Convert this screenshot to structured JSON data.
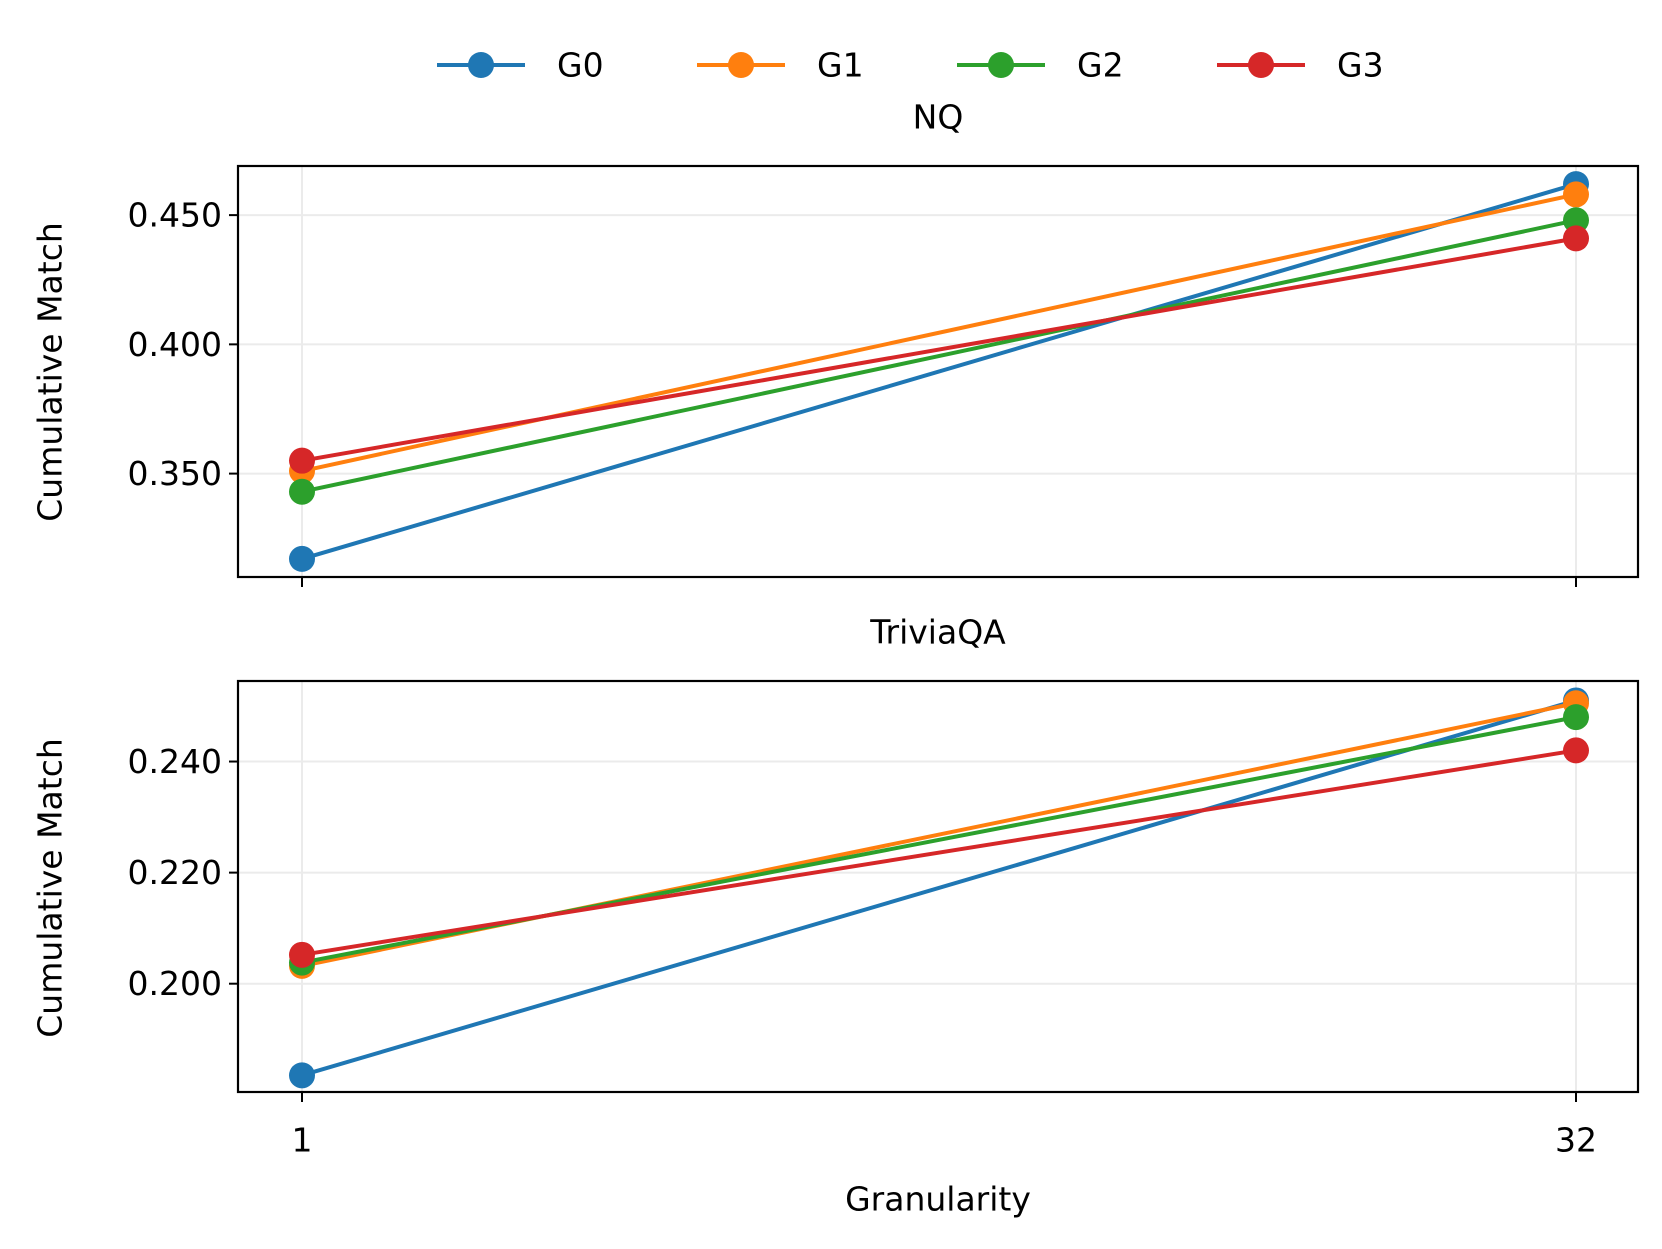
{
  "legend": {
    "placement": "top-center",
    "entries": [
      {
        "label": "G0",
        "color": "#1f77b4"
      },
      {
        "label": "G1",
        "color": "#ff7f0e"
      },
      {
        "label": "G2",
        "color": "#2ca02c"
      },
      {
        "label": "G3",
        "color": "#d62728"
      }
    ]
  },
  "chart_data": [
    {
      "type": "line",
      "title": "NQ",
      "xlabel": "",
      "ylabel": "Cumulative Match",
      "x": [
        1,
        32
      ],
      "x_tick_labels": [
        "1",
        "32"
      ],
      "ylim": [
        0.31,
        0.469
      ],
      "y_ticks": [
        0.35,
        0.4,
        0.45
      ],
      "y_tick_labels": [
        "0.350",
        "0.400",
        "0.450"
      ],
      "grid": true,
      "series": [
        {
          "name": "G0",
          "values": [
            0.317,
            0.462
          ]
        },
        {
          "name": "G1",
          "values": [
            0.351,
            0.458
          ]
        },
        {
          "name": "G2",
          "values": [
            0.343,
            0.448
          ]
        },
        {
          "name": "G3",
          "values": [
            0.355,
            0.441
          ]
        }
      ]
    },
    {
      "type": "line",
      "title": "TriviaQA",
      "xlabel": "Granularity",
      "ylabel": "Cumulative Match",
      "x": [
        1,
        32
      ],
      "x_tick_labels": [
        "1",
        "32"
      ],
      "ylim": [
        0.1805,
        0.2545
      ],
      "y_ticks": [
        0.2,
        0.22,
        0.24
      ],
      "y_tick_labels": [
        "0.200",
        "0.220",
        "0.240"
      ],
      "grid": true,
      "series": [
        {
          "name": "G0",
          "values": [
            0.1835,
            0.251
          ]
        },
        {
          "name": "G1",
          "values": [
            0.2032,
            0.2505
          ]
        },
        {
          "name": "G2",
          "values": [
            0.2038,
            0.248
          ]
        },
        {
          "name": "G3",
          "values": [
            0.2052,
            0.242
          ]
        }
      ]
    }
  ]
}
